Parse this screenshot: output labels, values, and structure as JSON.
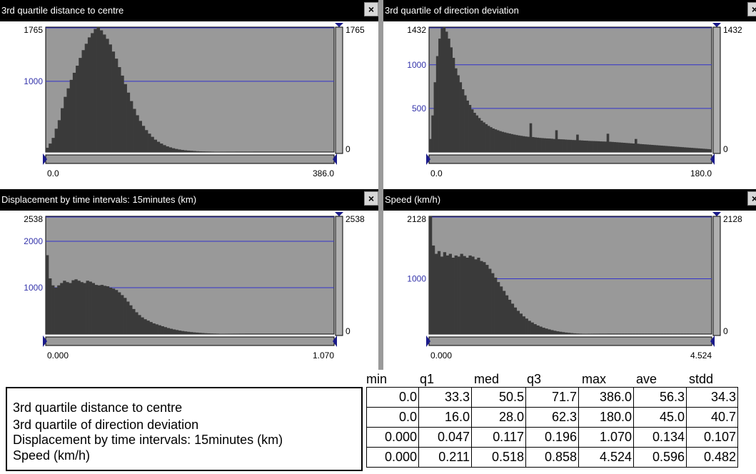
{
  "panels": [
    {
      "id": "distance",
      "title": "3rd quartile distance to centre",
      "close_label": "×",
      "y_max_label": "1765",
      "y_zero_label": "0",
      "y_ticks": [
        {
          "value": 1000,
          "label": "1000"
        }
      ],
      "y_max": 1765,
      "x_min_label": "0.0",
      "x_max_label": "386.0",
      "bar_color": "#3a3a3a",
      "bg_color": "#999999",
      "gridline_color": "#3333cc",
      "bars": [
        60,
        120,
        200,
        330,
        450,
        620,
        780,
        900,
        1020,
        1120,
        1220,
        1330,
        1440,
        1530,
        1620,
        1680,
        1740,
        1765,
        1720,
        1660,
        1600,
        1520,
        1420,
        1320,
        1200,
        1080,
        960,
        840,
        720,
        610,
        520,
        440,
        370,
        310,
        260,
        215,
        175,
        145,
        120,
        98,
        80,
        66,
        54,
        44,
        36,
        30,
        25,
        21,
        18,
        15,
        12,
        10,
        9,
        8,
        7,
        6,
        5,
        5,
        4,
        4,
        3,
        3,
        3,
        2,
        2,
        2,
        2,
        2,
        2,
        1,
        1,
        1,
        1,
        1,
        1,
        1,
        1,
        1,
        1,
        1,
        1,
        1,
        1,
        1,
        1,
        1,
        1,
        1,
        1,
        1,
        1,
        1,
        1,
        1,
        1,
        1
      ]
    },
    {
      "id": "direction",
      "title": "3rd quartile of direction deviation",
      "close_label": "×",
      "y_max_label": "1432",
      "y_zero_label": "0",
      "y_ticks": [
        {
          "value": 1000,
          "label": "1000"
        },
        {
          "value": 500,
          "label": "500"
        }
      ],
      "y_max": 1432,
      "x_min_label": "0.0",
      "x_max_label": "180.0",
      "bar_color": "#3a3a3a",
      "bg_color": "#999999",
      "gridline_color": "#3333cc",
      "bars": [
        150,
        420,
        800,
        1100,
        1300,
        1420,
        1432,
        1380,
        1300,
        1200,
        1080,
        960,
        880,
        800,
        720,
        650,
        590,
        540,
        490,
        450,
        420,
        390,
        360,
        340,
        320,
        300,
        285,
        270,
        260,
        250,
        240,
        232,
        225,
        218,
        212,
        206,
        200,
        195,
        190,
        186,
        182,
        178,
        175,
        330,
        172,
        168,
        165,
        162,
        160,
        158,
        156,
        155,
        153,
        150,
        250,
        148,
        146,
        145,
        143,
        141,
        140,
        138,
        137,
        200,
        135,
        133,
        131,
        130,
        128,
        127,
        126,
        125,
        124,
        122,
        121,
        120,
        210,
        118,
        116,
        114,
        112,
        110,
        108,
        106,
        104,
        102,
        100,
        98,
        150,
        95,
        92,
        90,
        88,
        86,
        84,
        82,
        80,
        78,
        76,
        74,
        72,
        70,
        68,
        66,
        64,
        62,
        60,
        58,
        56,
        54,
        52,
        50,
        48,
        46,
        44,
        42,
        40,
        38,
        36,
        34,
        32
      ]
    },
    {
      "id": "displacement",
      "title": "Displacement by time intervals: 15minutes (km)",
      "close_label": "×",
      "y_max_label": "2538",
      "y_zero_label": "0",
      "y_ticks": [
        {
          "value": 2000,
          "label": "2000"
        },
        {
          "value": 1000,
          "label": "1000"
        }
      ],
      "y_max": 2538,
      "x_min_label": "0.000",
      "x_max_label": "1.070",
      "bar_color": "#3a3a3a",
      "bg_color": "#999999",
      "gridline_color": "#3333cc",
      "bars": [
        1700,
        1200,
        1050,
        1000,
        1050,
        1100,
        1150,
        1120,
        1100,
        1160,
        1180,
        1150,
        1120,
        1100,
        1150,
        1130,
        1100,
        1060,
        1050,
        1060,
        1040,
        1030,
        1000,
        980,
        950,
        900,
        840,
        780,
        700,
        620,
        540,
        470,
        410,
        360,
        320,
        290,
        260,
        230,
        210,
        190,
        170,
        150,
        130,
        115,
        100,
        88,
        76,
        66,
        58,
        50,
        43,
        37,
        32,
        27,
        23,
        19,
        16,
        14,
        12,
        10,
        8,
        7,
        6,
        5,
        4,
        3,
        3,
        2,
        2,
        1,
        1,
        1,
        1,
        1,
        1,
        1,
        1,
        1,
        1,
        1,
        1,
        1,
        1,
        1,
        1,
        1,
        1,
        1,
        1,
        1,
        1,
        1,
        1,
        1,
        1,
        1,
        1,
        1,
        1,
        1
      ]
    },
    {
      "id": "speed",
      "title": "Speed (km/h)",
      "close_label": "×",
      "y_max_label": "2128",
      "y_zero_label": "0",
      "y_ticks": [
        {
          "value": 1000,
          "label": "1000"
        }
      ],
      "y_max": 2128,
      "x_min_label": "0.000",
      "x_max_label": "4.524",
      "bar_color": "#3a3a3a",
      "bg_color": "#999999",
      "gridline_color": "#3333cc",
      "bars": [
        2128,
        1600,
        1450,
        1500,
        1400,
        1480,
        1420,
        1450,
        1380,
        1420,
        1400,
        1450,
        1410,
        1380,
        1420,
        1400,
        1350,
        1380,
        1320,
        1300,
        1250,
        1180,
        1100,
        1020,
        940,
        860,
        780,
        700,
        620,
        550,
        480,
        420,
        370,
        320,
        280,
        240,
        210,
        180,
        155,
        135,
        115,
        100,
        85,
        72,
        60,
        50,
        42,
        35,
        28,
        23,
        18,
        14,
        11,
        9,
        7,
        6,
        5,
        4,
        3,
        3,
        2,
        2,
        2,
        1,
        1,
        1,
        1,
        1,
        1,
        1,
        1,
        1,
        1,
        1,
        1,
        1,
        1,
        1,
        1,
        1,
        1,
        1,
        1,
        1,
        1,
        1,
        1,
        1,
        1,
        1,
        1,
        1,
        1,
        1,
        1,
        1,
        1,
        1,
        1,
        1
      ]
    }
  ],
  "stats": {
    "headers": [
      "min",
      "q1",
      "med",
      "q3",
      "max",
      "ave",
      "stdd"
    ],
    "rows": [
      {
        "name": "3rd quartile distance to centre",
        "values": [
          "0.0",
          "33.3",
          "50.5",
          "71.7",
          "386.0",
          "56.3",
          "34.3"
        ]
      },
      {
        "name": "3rd quartile of direction deviation",
        "values": [
          "0.0",
          "16.0",
          "28.0",
          "62.3",
          "180.0",
          "45.0",
          "40.7"
        ]
      },
      {
        "name": "Displacement by time intervals: 15minutes (km)",
        "values": [
          "0.000",
          "0.047",
          "0.117",
          "0.196",
          "1.070",
          "0.134",
          "0.107"
        ]
      },
      {
        "name": "Speed (km/h)",
        "values": [
          "0.000",
          "0.211",
          "0.518",
          "0.858",
          "4.524",
          "0.596",
          "0.482"
        ]
      }
    ]
  }
}
